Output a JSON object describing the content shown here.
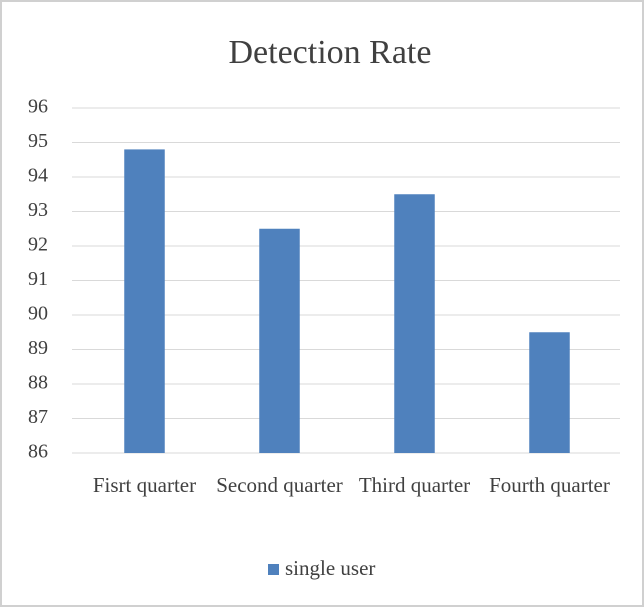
{
  "chart_data": {
    "type": "bar",
    "title": "Detection Rate",
    "categories": [
      "Fisrt quarter",
      "Second quarter",
      "Third quarter",
      "Fourth quarter"
    ],
    "series": [
      {
        "name": "single user",
        "color": "#4f81bd",
        "values": [
          94.8,
          92.5,
          93.5,
          89.5
        ]
      }
    ],
    "ylim": [
      86,
      96
    ],
    "yticks": [
      86,
      87,
      88,
      89,
      90,
      91,
      92,
      93,
      94,
      95,
      96
    ],
    "grid": true,
    "legend": "bottom"
  }
}
